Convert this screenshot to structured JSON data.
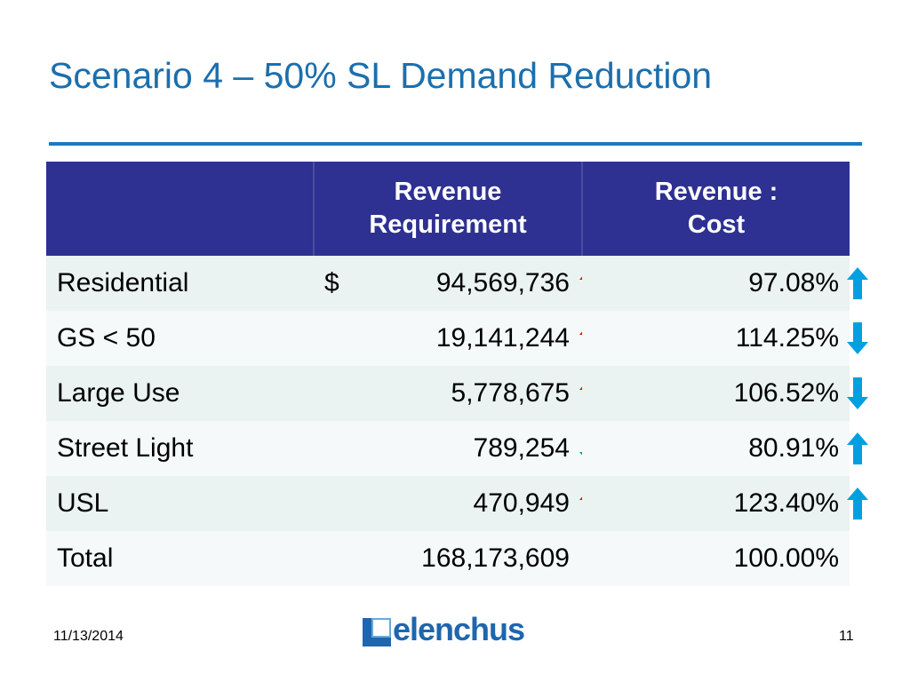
{
  "slide": {
    "title": "Scenario 4 – 50% SL Demand Reduction",
    "date": "11/13/2014",
    "page_number": "11",
    "logo_text": "elenchus"
  },
  "table": {
    "headers": [
      "",
      "Revenue Requirement",
      "Revenue : Cost"
    ],
    "rows": [
      {
        "label": "Residential",
        "currency": "$",
        "revenue": "94,569,736",
        "revenue_arrow": "up",
        "revenue_arrow_color": "#ff0000",
        "ratio": "97.08%",
        "ratio_arrow": "up",
        "ratio_arrow_color": "#00a0e0"
      },
      {
        "label": "GS < 50",
        "currency": "",
        "revenue": "19,141,244",
        "revenue_arrow": "up",
        "revenue_arrow_color": "#ff0000",
        "ratio": "114.25%",
        "ratio_arrow": "down",
        "ratio_arrow_color": "#00a0e0"
      },
      {
        "label": "Large Use",
        "currency": "",
        "revenue": "5,778,675",
        "revenue_arrow": "up",
        "revenue_arrow_color": "#ff0000",
        "ratio": "106.52%",
        "ratio_arrow": "down",
        "ratio_arrow_color": "#00a0e0"
      },
      {
        "label": "Street Light",
        "currency": "",
        "revenue": "789,254",
        "revenue_arrow": "down",
        "revenue_arrow_color": "#00a651",
        "ratio": "80.91%",
        "ratio_arrow": "up",
        "ratio_arrow_color": "#00a0e0"
      },
      {
        "label": "USL",
        "currency": "",
        "revenue": "470,949",
        "revenue_arrow": "up",
        "revenue_arrow_color": "#ff0000",
        "ratio": "123.40%",
        "ratio_arrow": "up",
        "ratio_arrow_color": "#00a0e0"
      },
      {
        "label": "Total",
        "currency": "",
        "revenue": "168,173,609",
        "revenue_arrow": "",
        "revenue_arrow_color": "",
        "ratio": "100.00%",
        "ratio_arrow": "",
        "ratio_arrow_color": ""
      }
    ]
  },
  "colors": {
    "title": "#1b6fad",
    "header_bg": "#2e3191",
    "rule": "#1b79c0",
    "logo": "#1e66ad"
  }
}
